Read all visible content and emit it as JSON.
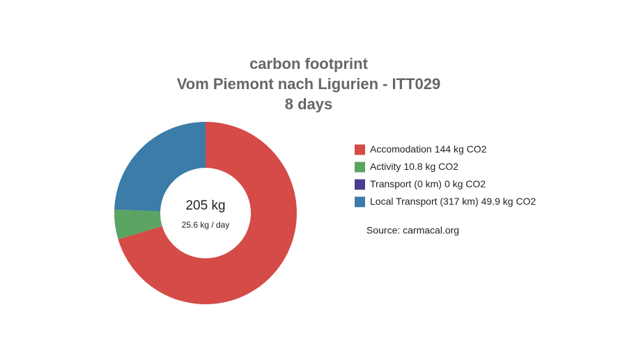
{
  "chart_data": {
    "type": "donut",
    "title": [
      "carbon footprint",
      "Vom Piemont nach Ligurien - ITT029",
      "8 days"
    ],
    "categories": [
      "Accomodation",
      "Activity",
      "Transport (0 km)",
      "Local Transport (317 km)"
    ],
    "values": [
      144,
      10.8,
      0,
      49.9
    ],
    "value_labels": [
      "144 kg CO2",
      "10.8 kg CO2",
      "0 kg CO2",
      "49.9 kg CO2"
    ],
    "colors": [
      "#d44b47",
      "#5ba462",
      "#4b3a8f",
      "#3b7ca8"
    ],
    "center_label": "205 kg",
    "center_sublabel": "25.6 kg / day",
    "source": "Source: carmacal.org"
  }
}
